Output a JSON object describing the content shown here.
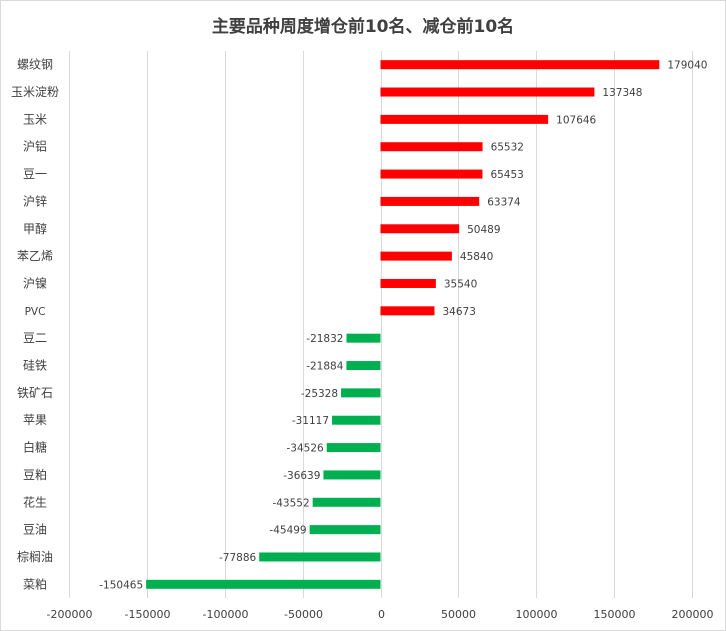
{
  "chart_data": {
    "type": "bar",
    "orientation": "horizontal",
    "title": "主要品种周度增仓前10名、减仓前10名",
    "categories": [
      "螺纹钢",
      "玉米淀粉",
      "玉米",
      "沪铝",
      "豆一",
      "沪锌",
      "甲醇",
      "苯乙烯",
      "沪镍",
      "PVC",
      "豆二",
      "硅铁",
      "铁矿石",
      "苹果",
      "白糖",
      "豆粕",
      "花生",
      "豆油",
      "棕榈油",
      "菜粕"
    ],
    "values": [
      179040,
      137348,
      107646,
      65532,
      65453,
      63374,
      50489,
      45840,
      35540,
      34673,
      -21832,
      -21884,
      -25328,
      -31117,
      -34526,
      -36639,
      -43552,
      -45499,
      -77886,
      -150465
    ],
    "xlim": [
      -200000,
      200000
    ],
    "xticks": [
      "-200000",
      "-150000",
      "-100000",
      "-50000",
      "0",
      "50000",
      "100000",
      "150000",
      "200000"
    ],
    "grid": true,
    "colors": {
      "positive": "#ff0000",
      "negative": "#00b050",
      "grid": "#d9d9d9"
    }
  }
}
